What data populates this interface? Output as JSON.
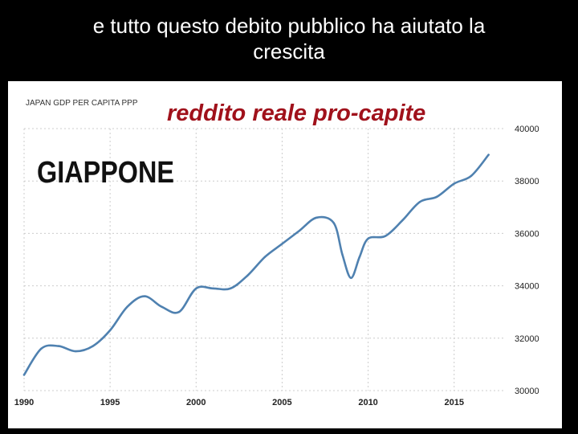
{
  "slide": {
    "title_line1": "e tutto questo debito pubblico ha aiutato la",
    "title_line2": "crescita"
  },
  "chart_data": {
    "type": "line",
    "title": "JAPAN GDP PER CAPITA PPP",
    "overlay_title": "reddito reale pro-capite",
    "country_label": "GIAPPONE",
    "xlim": [
      1990,
      2018
    ],
    "ylim": [
      30000,
      40000
    ],
    "x_ticks": [
      "1990",
      "1995",
      "2000",
      "2005",
      "2010",
      "2015"
    ],
    "y_ticks": [
      "30000",
      "32000",
      "34000",
      "36000",
      "38000",
      "40000"
    ],
    "y_axis_position": "right",
    "grid": true,
    "line_color": "#4f81b0",
    "series": [
      {
        "x": [
          1990,
          1991,
          1992,
          1993,
          1994,
          1995,
          1996,
          1997,
          1998,
          1999,
          2000,
          2001,
          2002,
          2003,
          2004,
          2005,
          2006,
          2007,
          2008,
          2008.5,
          2009,
          2009.5,
          2010,
          2011,
          2012,
          2013,
          2014,
          2015,
          2016,
          2017
        ],
        "values": [
          30600,
          31600,
          31700,
          31500,
          31700,
          32300,
          33200,
          33600,
          33200,
          33000,
          33900,
          33900,
          33900,
          34400,
          35100,
          35600,
          36100,
          36600,
          36400,
          35200,
          34300,
          35100,
          35800,
          35900,
          36500,
          37200,
          37400,
          37900,
          38200,
          39000
        ]
      }
    ]
  }
}
